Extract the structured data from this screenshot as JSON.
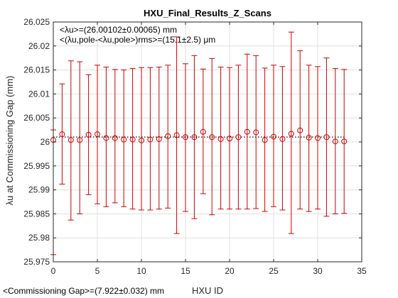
{
  "chart_data": {
    "type": "scatter",
    "title": "HXU_Final_Results_Z_Scans",
    "xlabel": "HXU ID",
    "ylabel": "λu at Commissioning Gap (mm)",
    "xlim": [
      0,
      35
    ],
    "ylim": [
      25.975,
      26.025
    ],
    "xticks": [
      "0",
      "5",
      "10",
      "15",
      "20",
      "25",
      "30",
      "35"
    ],
    "yticks": [
      "25.975",
      "25.98",
      "25.985",
      "25.99",
      "25.995",
      "26",
      "26.005",
      "26.01",
      "26.015",
      "26.02",
      "26.025"
    ],
    "grid": true,
    "mean_line": 26.00102,
    "annotation_mean": "<λu>=(26.00102±0.00065) mm",
    "annotation_rms": "<(λu,pole-<λu,pole>)rms>=(15.1±2.5) μm",
    "footnote": "<Commissioning Gap>=(7.922±0.032) mm",
    "color": "#cc0000",
    "series": [
      {
        "x": [
          0,
          1,
          2,
          3,
          4,
          5,
          6,
          7,
          8,
          9,
          10,
          11,
          12,
          13,
          14,
          15,
          16,
          17,
          18,
          19,
          20,
          21,
          22,
          23,
          24,
          25,
          26,
          27,
          28,
          29,
          30,
          31,
          32,
          33
        ],
        "y": [
          26.0004,
          26.0016,
          26.0004,
          26.0004,
          26.0015,
          26.0016,
          26.0008,
          26.0008,
          26.0005,
          26.0005,
          26.0003,
          26.0005,
          26.0006,
          26.0012,
          26.0014,
          26.001,
          26.001,
          26.0021,
          26.001,
          26.0006,
          26.0007,
          26.001,
          26.0021,
          26.002,
          26.0004,
          26.0011,
          26.0006,
          26.0017,
          26.0024,
          26.0009,
          26.0008,
          26.001,
          26.0001,
          26.0001
        ],
        "ymin": [
          25.9765,
          25.9912,
          25.9837,
          25.985,
          25.989,
          25.9871,
          25.9865,
          25.9873,
          25.9865,
          25.986,
          25.9858,
          25.9858,
          25.986,
          25.9862,
          25.9809,
          25.9855,
          25.984,
          25.9892,
          25.9848,
          25.986,
          25.986,
          25.986,
          25.986,
          25.9861,
          25.9855,
          25.9865,
          25.9858,
          25.9809,
          25.986,
          25.9855,
          25.986,
          25.9845,
          25.985,
          25.9851
        ],
        "ymax": [
          26.0025,
          26.0121,
          26.0169,
          26.0167,
          26.014,
          26.016,
          26.0156,
          26.0151,
          26.015,
          26.0153,
          26.0155,
          26.0155,
          26.0156,
          26.016,
          26.0219,
          26.0163,
          26.018,
          26.0152,
          26.0174,
          26.0156,
          26.0155,
          26.016,
          26.0183,
          26.018,
          26.0154,
          26.016,
          26.0157,
          26.0229,
          26.019,
          26.016,
          26.0157,
          26.0175,
          26.0153,
          26.0151
        ]
      }
    ]
  }
}
